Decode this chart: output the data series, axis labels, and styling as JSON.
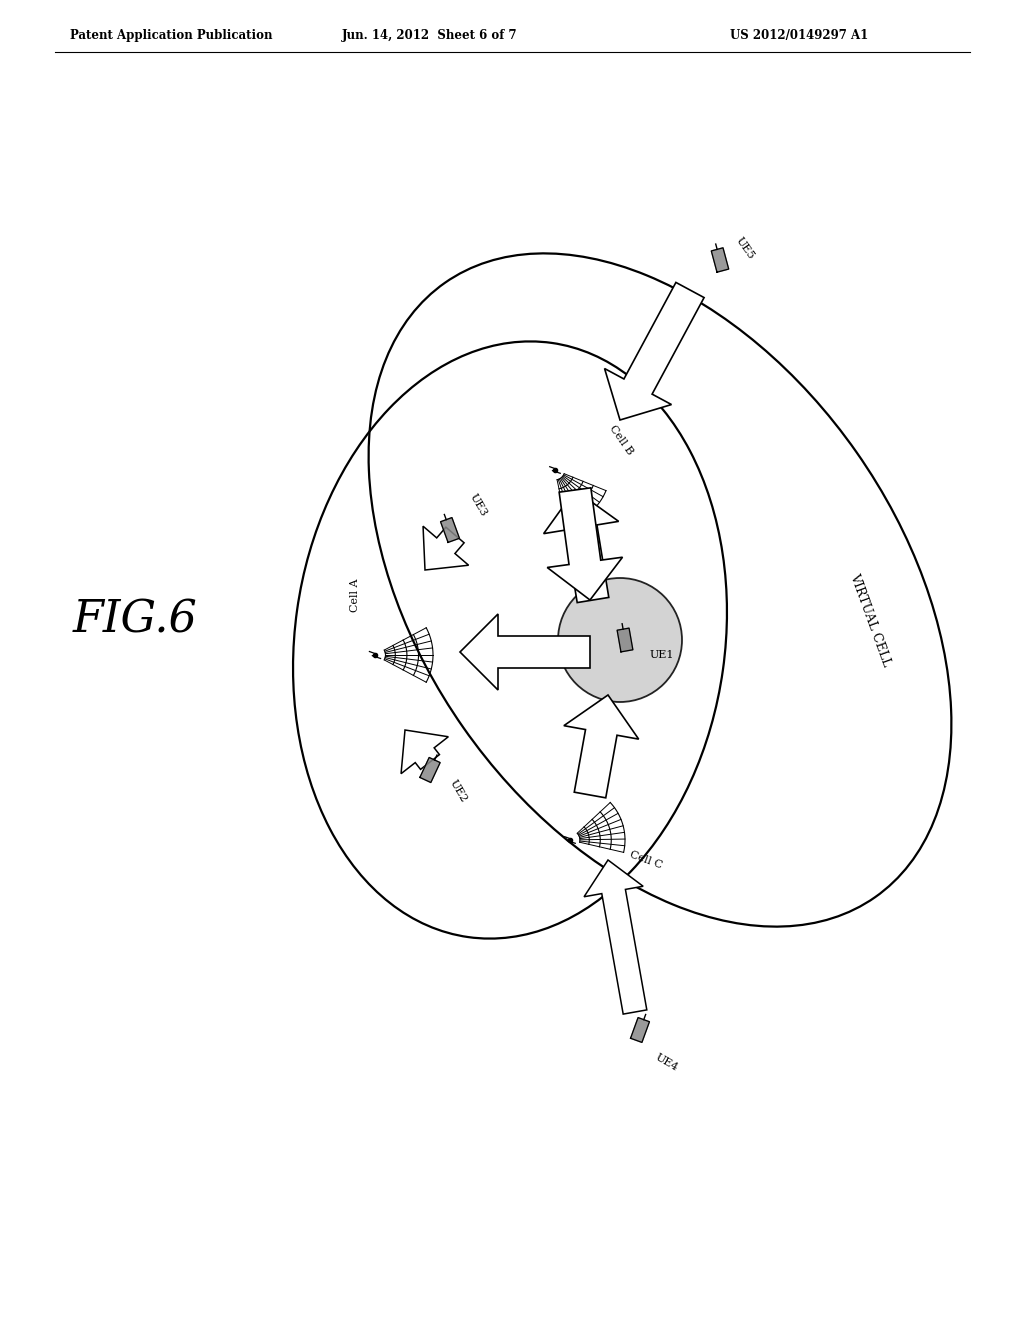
{
  "header_left": "Patent Application Publication",
  "header_mid": "Jun. 14, 2012  Sheet 6 of 7",
  "header_right": "US 2012/0149297 A1",
  "bg_color": "#ffffff",
  "fig_label": "FIG.6",
  "virtual_cell_label": "VIRTUAL CELL"
}
